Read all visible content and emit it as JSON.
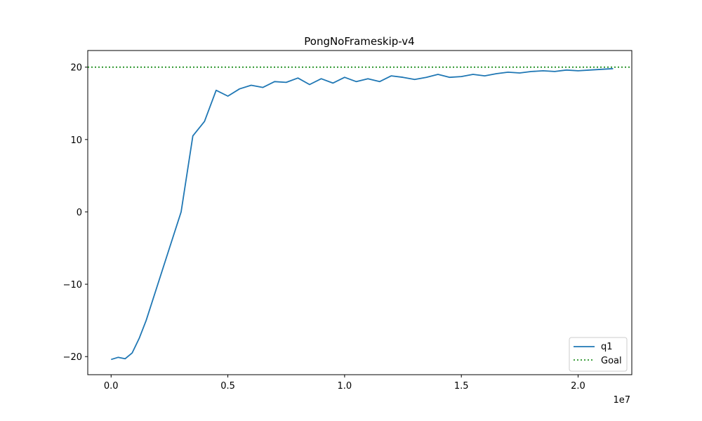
{
  "chart_data": {
    "type": "line",
    "title": "PongNoFrameskip-v4",
    "xlabel": "",
    "ylabel": "",
    "x_offset_label": "1e7",
    "xlim": [
      -0.1,
      2.23
    ],
    "ylim": [
      -22.5,
      22.3
    ],
    "x_ticks": [
      0.0,
      0.5,
      1.0,
      1.5,
      2.0
    ],
    "x_tick_labels": [
      "0.0",
      "0.5",
      "1.0",
      "1.5",
      "2.0"
    ],
    "y_ticks": [
      -20,
      -10,
      0,
      10,
      20
    ],
    "y_tick_labels": [
      "−20",
      "−10",
      "0",
      "10",
      "20"
    ],
    "grid": false,
    "legend_position": "lower-right",
    "colors": {
      "q1": "#1f77b4",
      "goal": "#008000"
    },
    "series": [
      {
        "name": "q1",
        "x": [
          0.0,
          0.03,
          0.06,
          0.09,
          0.12,
          0.15,
          0.2,
          0.25,
          0.3,
          0.35,
          0.4,
          0.45,
          0.5,
          0.55,
          0.6,
          0.65,
          0.7,
          0.75,
          0.8,
          0.85,
          0.9,
          0.95,
          1.0,
          1.05,
          1.1,
          1.15,
          1.2,
          1.25,
          1.3,
          1.35,
          1.4,
          1.45,
          1.5,
          1.55,
          1.6,
          1.65,
          1.7,
          1.75,
          1.8,
          1.85,
          1.9,
          1.95,
          2.0,
          2.05,
          2.1,
          2.15
        ],
        "y": [
          -20.4,
          -20.1,
          -20.3,
          -19.5,
          -17.5,
          -15.0,
          -10.0,
          -5.0,
          0.0,
          10.5,
          12.5,
          16.8,
          16.0,
          17.0,
          17.5,
          17.2,
          18.0,
          17.9,
          18.5,
          17.6,
          18.4,
          17.8,
          18.6,
          18.0,
          18.4,
          18.0,
          18.8,
          18.6,
          18.3,
          18.6,
          19.0,
          18.6,
          18.7,
          19.0,
          18.8,
          19.1,
          19.3,
          19.2,
          19.4,
          19.5,
          19.4,
          19.6,
          19.5,
          19.6,
          19.7,
          19.8
        ]
      },
      {
        "name": "Goal",
        "y_constant": 20
      }
    ]
  }
}
